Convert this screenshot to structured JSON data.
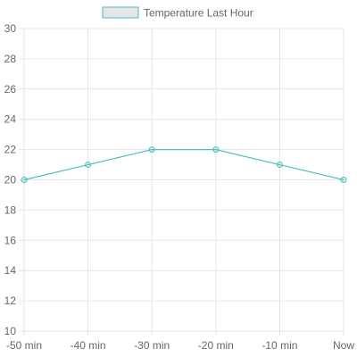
{
  "chart_data": {
    "type": "line",
    "categories": [
      "-50 min",
      "-40 min",
      "-30 min",
      "-20 min",
      "-10 min",
      "Now"
    ],
    "series": [
      {
        "name": "Temperature Last Hour",
        "values": [
          20,
          21,
          22,
          22,
          21,
          20
        ]
      }
    ],
    "ylim": [
      10,
      30
    ],
    "yticks": [
      10,
      12,
      14,
      16,
      18,
      20,
      22,
      24,
      26,
      28,
      30
    ],
    "grid": true,
    "legend_position": "top",
    "colors": {
      "line": "#4bc0c0",
      "legend_fill": "#e6e6e6",
      "grid": "#e6e6e6"
    }
  }
}
